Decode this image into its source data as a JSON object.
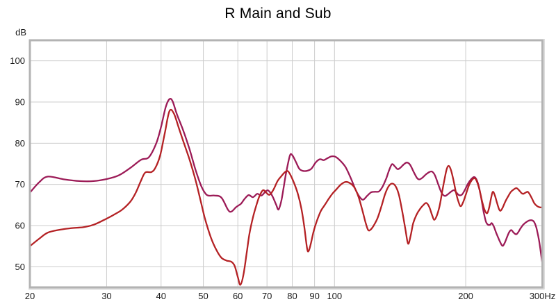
{
  "chart_data": {
    "type": "line",
    "title": "R Main and Sub",
    "ylabel": "dB",
    "x_scale": "log",
    "xlim": [
      20,
      300
    ],
    "ylim": [
      45,
      105
    ],
    "grid": true,
    "legend": "none",
    "x_ticks": [
      20,
      30,
      40,
      50,
      60,
      70,
      80,
      90,
      100,
      200,
      300
    ],
    "x_tick_labels": [
      "20",
      "30",
      "40",
      "50",
      "60",
      "70",
      "80",
      "90",
      "100",
      "200",
      "300Hz"
    ],
    "y_ticks": [
      100,
      90,
      80,
      70,
      60,
      50
    ],
    "series": [
      {
        "name": "trace-purple",
        "color": "#9c1b57",
        "points": [
          [
            20,
            68.0
          ],
          [
            21,
            70.5
          ],
          [
            22,
            71.9
          ],
          [
            24,
            71.2
          ],
          [
            26,
            70.8
          ],
          [
            28,
            70.8
          ],
          [
            30,
            71.3
          ],
          [
            32,
            72.2
          ],
          [
            34,
            74.0
          ],
          [
            36,
            76.0
          ],
          [
            37.5,
            76.6
          ],
          [
            39,
            80.0
          ],
          [
            40,
            84.0
          ],
          [
            41,
            88.8
          ],
          [
            41.8,
            90.7
          ],
          [
            42.5,
            90.2
          ],
          [
            43.5,
            87.0
          ],
          [
            45,
            83.0
          ],
          [
            46.5,
            78.5
          ],
          [
            48,
            73.5
          ],
          [
            49.5,
            69.5
          ],
          [
            51,
            67.4
          ],
          [
            53,
            67.3
          ],
          [
            55,
            66.8
          ],
          [
            57,
            63.8
          ],
          [
            58,
            63.4
          ],
          [
            59.5,
            64.5
          ],
          [
            61,
            65.3
          ],
          [
            62,
            66.3
          ],
          [
            63.5,
            67.4
          ],
          [
            65,
            66.9
          ],
          [
            66.5,
            67.7
          ],
          [
            68,
            67.3
          ],
          [
            69.5,
            68.3
          ],
          [
            70.5,
            68.5
          ],
          [
            72,
            67.2
          ],
          [
            73.5,
            65.0
          ],
          [
            74.4,
            63.9
          ],
          [
            75.5,
            66.0
          ],
          [
            76.5,
            69.5
          ],
          [
            77.5,
            73.0
          ],
          [
            79,
            77.0
          ],
          [
            80,
            77.1
          ],
          [
            81.5,
            75.5
          ],
          [
            83,
            73.8
          ],
          [
            84.5,
            73.3
          ],
          [
            86.5,
            73.3
          ],
          [
            88.5,
            73.8
          ],
          [
            90.5,
            75.3
          ],
          [
            92.5,
            76.1
          ],
          [
            94.5,
            75.9
          ],
          [
            96.5,
            76.4
          ],
          [
            98.5,
            76.8
          ],
          [
            100.5,
            76.7
          ],
          [
            103,
            75.8
          ],
          [
            106,
            74.2
          ],
          [
            109,
            71.5
          ],
          [
            112,
            68.5
          ],
          [
            114.5,
            66.8
          ],
          [
            116.5,
            66.3
          ],
          [
            119,
            67.3
          ],
          [
            121.5,
            68.1
          ],
          [
            124,
            68.2
          ],
          [
            126.5,
            68.3
          ],
          [
            129,
            69.5
          ],
          [
            131.5,
            71.5
          ],
          [
            133.5,
            73.5
          ],
          [
            135.5,
            74.9
          ],
          [
            137.5,
            74.4
          ],
          [
            139.5,
            73.7
          ],
          [
            141.5,
            74.0
          ],
          [
            144,
            74.8
          ],
          [
            146.5,
            75.3
          ],
          [
            149,
            74.8
          ],
          [
            152,
            73.0
          ],
          [
            154.5,
            71.6
          ],
          [
            156.5,
            71.2
          ],
          [
            159,
            71.6
          ],
          [
            162,
            72.4
          ],
          [
            165,
            73.0
          ],
          [
            167.5,
            73.1
          ],
          [
            170,
            72.2
          ],
          [
            173,
            70.0
          ],
          [
            176,
            68.0
          ],
          [
            179,
            67.2
          ],
          [
            182,
            67.6
          ],
          [
            185,
            68.2
          ],
          [
            188,
            68.6
          ],
          [
            190.5,
            68.0
          ],
          [
            193,
            67.4
          ],
          [
            196,
            67.5
          ],
          [
            199,
            68.6
          ],
          [
            202.5,
            70.2
          ],
          [
            206,
            71.3
          ],
          [
            209,
            71.8
          ],
          [
            211.5,
            71.3
          ],
          [
            214,
            69.8
          ],
          [
            217,
            66.8
          ],
          [
            220,
            63.2
          ],
          [
            222.5,
            61.0
          ],
          [
            225,
            60.2
          ],
          [
            227.5,
            60.2
          ],
          [
            229.5,
            60.6
          ],
          [
            232,
            59.8
          ],
          [
            235,
            58.2
          ],
          [
            238.5,
            56.6
          ],
          [
            241.5,
            55.4
          ],
          [
            243.5,
            55.1
          ],
          [
            246,
            55.9
          ],
          [
            249,
            57.3
          ],
          [
            252,
            58.5
          ],
          [
            254.5,
            58.9
          ],
          [
            257,
            58.4
          ],
          [
            259.5,
            58.0
          ],
          [
            261.5,
            57.9
          ],
          [
            264,
            58.4
          ],
          [
            267.5,
            59.4
          ],
          [
            271,
            60.2
          ],
          [
            275,
            60.8
          ],
          [
            279,
            61.2
          ],
          [
            283,
            61.3
          ],
          [
            286.5,
            61.0
          ],
          [
            289.5,
            60.0
          ],
          [
            292,
            58.5
          ],
          [
            294.5,
            56.5
          ],
          [
            296.5,
            54.5
          ],
          [
            298.5,
            52.3
          ],
          [
            300,
            50.6
          ]
        ]
      },
      {
        "name": "trace-red",
        "color": "#b42124",
        "points": [
          [
            20,
            55.0
          ],
          [
            21,
            56.8
          ],
          [
            22,
            58.3
          ],
          [
            23.5,
            59.0
          ],
          [
            25,
            59.4
          ],
          [
            26.5,
            59.6
          ],
          [
            28,
            60.2
          ],
          [
            29.5,
            61.3
          ],
          [
            31,
            62.5
          ],
          [
            32.5,
            63.8
          ],
          [
            34,
            65.8
          ],
          [
            35,
            68.0
          ],
          [
            36,
            71.0
          ],
          [
            36.8,
            72.9
          ],
          [
            38,
            73.0
          ],
          [
            38.8,
            74.0
          ],
          [
            39.8,
            77.0
          ],
          [
            40.8,
            82.5
          ],
          [
            41.8,
            87.8
          ],
          [
            42.8,
            87.2
          ],
          [
            44,
            83.5
          ],
          [
            45.3,
            79.5
          ],
          [
            46.5,
            76.0
          ],
          [
            48,
            71.0
          ],
          [
            49.3,
            66.0
          ],
          [
            50.5,
            61.5
          ],
          [
            52,
            57.2
          ],
          [
            53.5,
            54.2
          ],
          [
            55,
            52.2
          ],
          [
            56.5,
            51.5
          ],
          [
            58,
            51.2
          ],
          [
            59,
            50.2
          ],
          [
            60,
            47.5
          ],
          [
            60.8,
            45.6
          ],
          [
            61.8,
            48.0
          ],
          [
            63,
            54.0
          ],
          [
            63.8,
            58.0
          ],
          [
            65,
            62.0
          ],
          [
            66.2,
            65.0
          ],
          [
            67.3,
            67.2
          ],
          [
            68.6,
            68.6
          ],
          [
            70,
            67.8
          ],
          [
            71,
            67.5
          ],
          [
            72.5,
            68.8
          ],
          [
            74,
            70.8
          ],
          [
            75.5,
            72.0
          ],
          [
            77,
            73.0
          ],
          [
            78.2,
            73.2
          ],
          [
            79.5,
            72.0
          ],
          [
            81,
            70.0
          ],
          [
            82.5,
            67.5
          ],
          [
            84,
            64.0
          ],
          [
            85.3,
            59.5
          ],
          [
            86.5,
            54.5
          ],
          [
            87.2,
            53.8
          ],
          [
            88.2,
            55.5
          ],
          [
            89.5,
            58.5
          ],
          [
            91,
            61.0
          ],
          [
            93,
            63.5
          ],
          [
            95,
            65.0
          ],
          [
            97,
            66.5
          ],
          [
            99,
            67.8
          ],
          [
            101,
            68.8
          ],
          [
            103.5,
            70.0
          ],
          [
            106,
            70.6
          ],
          [
            108.5,
            70.3
          ],
          [
            111,
            69.3
          ],
          [
            113.5,
            67.0
          ],
          [
            116,
            63.5
          ],
          [
            118,
            60.5
          ],
          [
            119.5,
            58.9
          ],
          [
            121,
            59.0
          ],
          [
            123,
            60.0
          ],
          [
            125.5,
            61.8
          ],
          [
            128,
            64.5
          ],
          [
            130.5,
            67.5
          ],
          [
            133,
            69.5
          ],
          [
            135.5,
            70.2
          ],
          [
            138,
            69.6
          ],
          [
            140.5,
            67.5
          ],
          [
            143,
            63.5
          ],
          [
            145.5,
            59.0
          ],
          [
            147.5,
            55.6
          ],
          [
            149.5,
            57.5
          ],
          [
            151.5,
            60.5
          ],
          [
            154,
            62.5
          ],
          [
            157,
            64.0
          ],
          [
            160,
            65.0
          ],
          [
            162.5,
            65.5
          ],
          [
            165,
            64.5
          ],
          [
            167.5,
            62.5
          ],
          [
            169.3,
            61.4
          ],
          [
            171.5,
            62.3
          ],
          [
            174,
            64.5
          ],
          [
            176.5,
            68.0
          ],
          [
            179,
            71.5
          ],
          [
            181,
            73.8
          ],
          [
            182.8,
            74.5
          ],
          [
            185,
            73.5
          ],
          [
            187.5,
            71.0
          ],
          [
            190,
            68.0
          ],
          [
            192.5,
            65.8
          ],
          [
            194.8,
            64.7
          ],
          [
            197.5,
            65.8
          ],
          [
            200.5,
            67.8
          ],
          [
            203.5,
            69.8
          ],
          [
            206.5,
            71.0
          ],
          [
            209.5,
            71.5
          ],
          [
            212,
            70.8
          ],
          [
            215,
            68.8
          ],
          [
            218,
            66.0
          ],
          [
            221,
            63.8
          ],
          [
            224,
            63.0
          ],
          [
            226.5,
            64.5
          ],
          [
            229,
            67.0
          ],
          [
            231,
            68.2
          ],
          [
            233.5,
            67.2
          ],
          [
            236,
            65.5
          ],
          [
            238.5,
            64.0
          ],
          [
            240.5,
            63.6
          ],
          [
            243,
            64.3
          ],
          [
            246.5,
            65.8
          ],
          [
            250,
            67.0
          ],
          [
            254,
            68.2
          ],
          [
            258,
            68.8
          ],
          [
            261.5,
            69.1
          ],
          [
            265,
            68.6
          ],
          [
            268.5,
            67.9
          ],
          [
            271,
            67.7
          ],
          [
            274.5,
            68.0
          ],
          [
            277.5,
            68.2
          ],
          [
            280.5,
            67.6
          ],
          [
            284,
            66.5
          ],
          [
            287.5,
            65.4
          ],
          [
            291,
            64.8
          ],
          [
            294.5,
            64.5
          ],
          [
            297.5,
            64.4
          ],
          [
            300,
            64.5
          ]
        ]
      }
    ]
  },
  "colors": {
    "background": "#ffffff",
    "grid": "#cccccc",
    "frame": "#b3b3b3",
    "frame_shadow": "#dddddd",
    "text": "#1a1a1a",
    "title": "#000000"
  }
}
